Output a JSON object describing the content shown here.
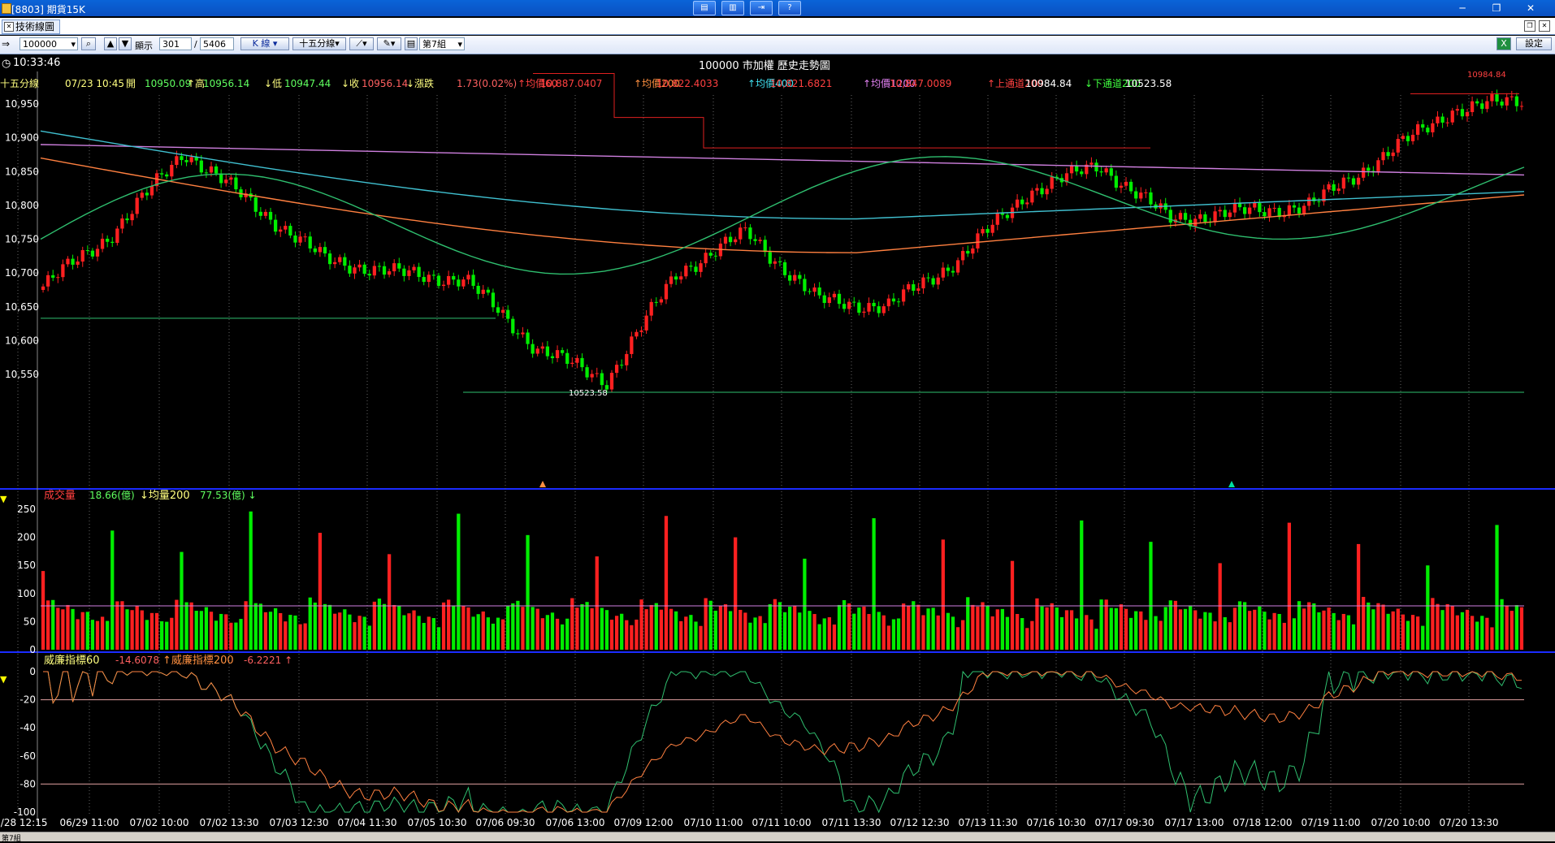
{
  "window": {
    "title": "[8803] 期貨15K",
    "tab": "技術線圖"
  },
  "toolbar": {
    "symbol": "100000",
    "show_label": "顯示",
    "show_count": "301",
    "total_count": "5406",
    "kline": "K 線",
    "period": "十五分線",
    "group": "第7組",
    "settings": "設定"
  },
  "header": {
    "time": "10:33:46",
    "title": "100000 市加權 歷史走勢圖"
  },
  "quote": {
    "period_label": "十五分線",
    "datetime": "07/23 10:45",
    "open_label": "開",
    "open": "10950.09",
    "high_label": "高",
    "high": "10956.14",
    "low_label": "低",
    "low": "10947.44",
    "close_label": "收",
    "close": "10956.14",
    "change_label": "漲跌",
    "change": "1.73(0.02%)",
    "ma60_label": "均價60",
    "ma60": "10,887.0407",
    "ma200_label": "均價200",
    "ma200": "10,822.4033",
    "ma400_label": "均價400",
    "ma400": "10,821.6821",
    "ma1200_label": "均價1200",
    "ma1200": "10,847.0089",
    "upper_label": "上通道200",
    "upper": "10984.84",
    "lower_label": "下通道200",
    "lower": "10523.58"
  },
  "price_axis": [
    "10,950",
    "10,900",
    "10,850",
    "10,800",
    "10,750",
    "10,700",
    "10,650",
    "10,600",
    "10,550"
  ],
  "markers": {
    "high": "10984.84",
    "low": "10523.58"
  },
  "volume": {
    "label": "成交量",
    "value": "18.66(億)",
    "ma_label": "均量200",
    "ma_value": "77.53(億)",
    "axis": [
      "250",
      "200",
      "150",
      "100",
      "50",
      "0"
    ]
  },
  "williams": {
    "label1": "威廉指標60",
    "value1": "-14.6078",
    "label2": "威廉指標200",
    "value2": "-6.2221",
    "axis": [
      "0",
      "-20",
      "-40",
      "-60",
      "-80",
      "-100"
    ]
  },
  "dates": [
    "06/28 12:15",
    "06/29 11:00",
    "07/02 10:00",
    "07/02 13:30",
    "07/03 12:30",
    "07/04 11:30",
    "07/05 10:30",
    "07/06 09:30",
    "07/06 13:00",
    "07/09 12:00",
    "07/10 11:00",
    "07/11 10:00",
    "07/11 13:30",
    "07/12 12:30",
    "07/13 11:30",
    "07/16 10:30",
    "07/17 09:30",
    "07/17 13:00",
    "07/18 12:00",
    "07/19 11:00",
    "07/20 10:00",
    "07/20 13:30"
  ],
  "status": {
    "group": "第7組"
  },
  "colors": {
    "up": "#ff2020",
    "down": "#00ee00",
    "ma60": "#2fbf6f",
    "ma200": "#ff8040",
    "ma400": "#40c0d0",
    "ma1200": "#d080e0",
    "channel": "#e02020",
    "frame": "#1a2bff"
  },
  "chart_data": {
    "type": "candlestick",
    "title": "100000 市加權 歷史走勢圖",
    "ylim": [
      10510,
      11000
    ],
    "key_points": [
      {
        "x": "06/28 12:15",
        "close": 10680
      },
      {
        "x": "06/29 11:00",
        "close": 10760
      },
      {
        "x": "07/02 10:00",
        "close": 10880
      },
      {
        "x": "07/02 13:30",
        "close": 10800
      },
      {
        "x": "07/03 12:30",
        "close": 10720
      },
      {
        "x": "07/04 11:30",
        "close": 10700
      },
      {
        "x": "07/05 10:30",
        "close": 10690
      },
      {
        "x": "07/06 09:30",
        "close": 10590
      },
      {
        "x": "07/06 13:00",
        "close": 10540
      },
      {
        "x": "07/09 12:00",
        "close": 10700
      },
      {
        "x": "07/10 11:00",
        "close": 10760
      },
      {
        "x": "07/11 10:00",
        "close": 10660
      },
      {
        "x": "07/11 13:30",
        "close": 10650
      },
      {
        "x": "07/12 12:30",
        "close": 10720
      },
      {
        "x": "07/13 11:30",
        "close": 10820
      },
      {
        "x": "07/16 10:30",
        "close": 10860
      },
      {
        "x": "07/17 09:30",
        "close": 10780
      },
      {
        "x": "07/17 13:00",
        "close": 10790
      },
      {
        "x": "07/18 12:00",
        "close": 10800
      },
      {
        "x": "07/19 11:00",
        "close": 10870
      },
      {
        "x": "07/20 10:00",
        "close": 10940
      },
      {
        "x": "07/20 13:30",
        "close": 10956.14
      }
    ],
    "channel_upper": 10984.84,
    "channel_lower": 10523.58
  }
}
